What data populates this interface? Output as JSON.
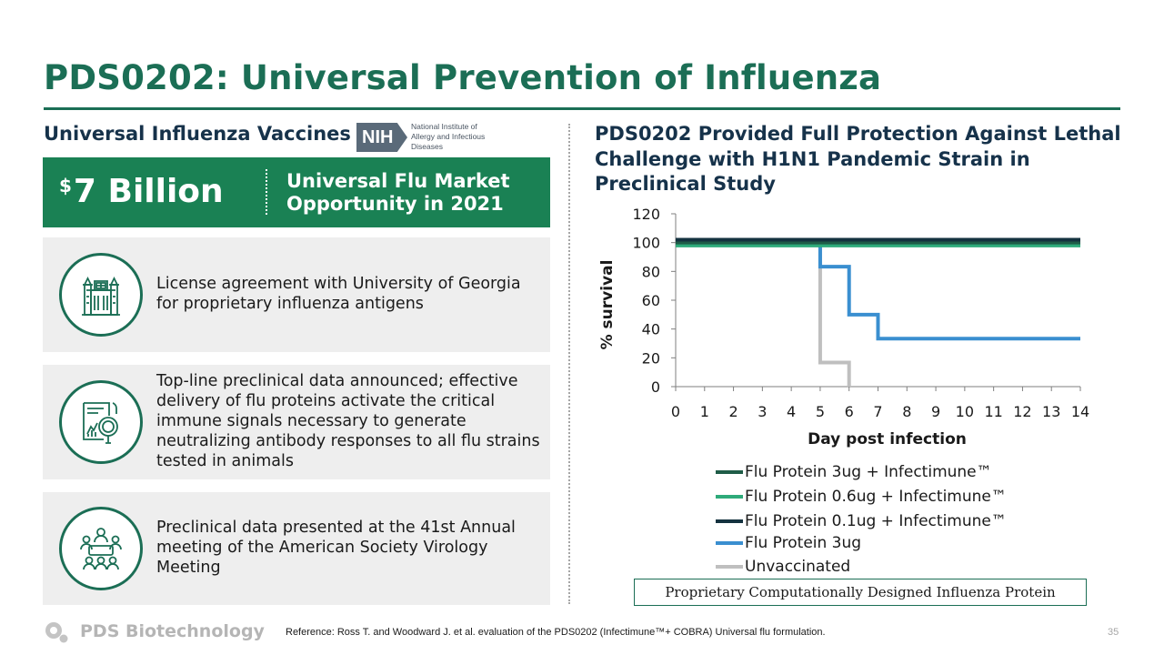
{
  "slide": {
    "title": "PDS0202: Universal Prevention of Influenza",
    "page_number": "35"
  },
  "left": {
    "heading": "Universal Influenza Vaccines",
    "nih_logo": {
      "badge": "NIH",
      "text": "National Institute of Allergy and Infectious Diseases"
    },
    "banner": {
      "currency_symbol": "$",
      "amount": "7 Billion",
      "description": "Universal Flu Market Opportunity in 2021"
    },
    "cards": [
      {
        "icon": "university-building-icon",
        "text": "License agreement with University of Georgia for proprietary influenza antigens"
      },
      {
        "icon": "data-analysis-magnifier-icon",
        "text": "Top-line preclinical data announced; effective delivery of flu proteins activate the critical immune signals necessary to generate neutralizing antibody responses to all flu strains tested in animals"
      },
      {
        "icon": "meeting-people-icon",
        "text": "Preclinical data presented at the 41st Annual meeting of the American Society Virology Meeting"
      }
    ]
  },
  "right": {
    "heading": "PDS0202 Provided Full Protection Against Lethal Challenge with H1N1 Pandemic Strain in Preclinical Study",
    "caption": "Proprietary Computationally Designed Influenza Protein"
  },
  "chart_data": {
    "type": "line",
    "step": true,
    "title": "",
    "xlabel": "Day post infection",
    "ylabel": "% survival",
    "xlim": [
      0,
      14
    ],
    "ylim": [
      0,
      120
    ],
    "x_ticks": [
      0,
      1,
      2,
      3,
      4,
      5,
      6,
      7,
      8,
      9,
      10,
      11,
      12,
      13,
      14
    ],
    "y_ticks": [
      0,
      20,
      40,
      60,
      80,
      100,
      120
    ],
    "grid": false,
    "legend_position": "bottom",
    "series": [
      {
        "name": "Flu Protein 3ug  + Infectimune™",
        "color": "#1f5c47",
        "x": [
          0,
          14
        ],
        "y": [
          100,
          100
        ]
      },
      {
        "name": "Flu Protein 0.6ug  + Infectimune™",
        "color": "#2eaa7a",
        "x": [
          0,
          14
        ],
        "y": [
          98,
          98
        ]
      },
      {
        "name": "Flu Protein 0.1ug  + Infectimune™",
        "color": "#14323f",
        "x": [
          0,
          14
        ],
        "y": [
          102,
          102
        ]
      },
      {
        "name": "Flu Protein 3ug",
        "color": "#3a8fd0",
        "x": [
          0,
          5,
          6,
          7,
          14
        ],
        "y": [
          100,
          83.3,
          50,
          33.3,
          33.3
        ]
      },
      {
        "name": "Unvaccinated",
        "color": "#bfbfbf",
        "x": [
          0,
          5,
          6
        ],
        "y": [
          100,
          16.7,
          0
        ]
      }
    ]
  },
  "footer": {
    "logo_text": "PDS Biotechnology",
    "reference": "Reference:  Ross T. and Woodward J. et al. evaluation of the PDS0202 (Infectimune™+ COBRA) Universal flu formulation."
  }
}
